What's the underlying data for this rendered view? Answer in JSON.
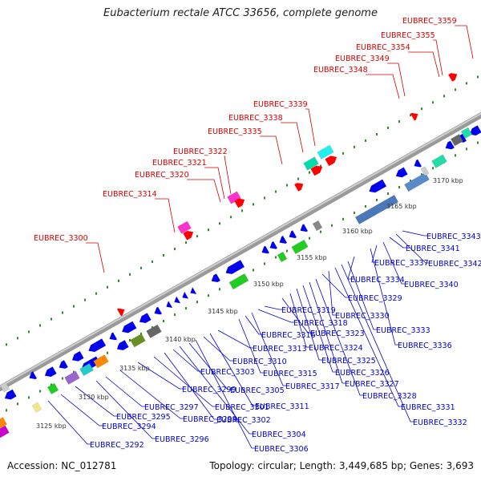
{
  "title": "Eubacterium rectale ATCC 33656, complete genome",
  "accession": "Accession: NC_012781",
  "summary": "Topology: circular; Length: 3,449,685 bp; Genes: 3,693",
  "colors": {
    "forward_gene": "#0000ee",
    "reverse_gene": "#0000ee",
    "top_label": "#d40000",
    "bottom_label": "#0000cc",
    "backbone": "#999999",
    "dots": "#2a8a2a",
    "scale_text": "#333333"
  },
  "scale_ticks": [
    "3125 kbp",
    "3130 kbp",
    "3135 kbp",
    "3140 kbp",
    "3145 kbp",
    "3150 kbp",
    "3155 kbp",
    "3160 kbp",
    "3165 kbp",
    "3170 kbp"
  ],
  "top_labels": [
    "EUBREC_3300",
    "EUBREC_3314",
    "EUBREC_3320",
    "EUBREC_3321",
    "EUBREC_3322",
    "EUBREC_3335",
    "EUBREC_3338",
    "EUBREC_3339",
    "EUBREC_3348",
    "EUBREC_3349",
    "EUBREC_3354",
    "EUBREC_3355",
    "EUBREC_3359"
  ],
  "bottom_labels": [
    "EUBREC_3292",
    "EUBREC_3294",
    "EUBREC_3295",
    "EUBREC_3296",
    "EUBREC_3297",
    "EUBREC_3298",
    "EUBREC_3299",
    "EUBREC_3301",
    "EUBREC_3302",
    "EUBREC_3303",
    "EUBREC_3304",
    "EUBREC_3305",
    "EUBREC_3306",
    "EUBREC_3310",
    "EUBREC_3311",
    "EUBREC_3313",
    "EUBREC_3315",
    "EUBREC_3316",
    "EUBREC_3317",
    "EUBREC_3318",
    "EUBREC_3319",
    "EUBREC_3323",
    "EUBREC_3324",
    "EUBREC_3325",
    "EUBREC_3326",
    "EUBREC_3327",
    "EUBREC_3328",
    "EUBREC_3329",
    "EUBREC_3330",
    "EUBREC_3331",
    "EUBREC_3332",
    "EUBREC_3333",
    "EUBREC_3334",
    "EUBREC_3336",
    "EUBREC_3337",
    "EUBREC_3340",
    "EUBREC_3341",
    "EUBREC_3342",
    "EUBREC_3343"
  ]
}
